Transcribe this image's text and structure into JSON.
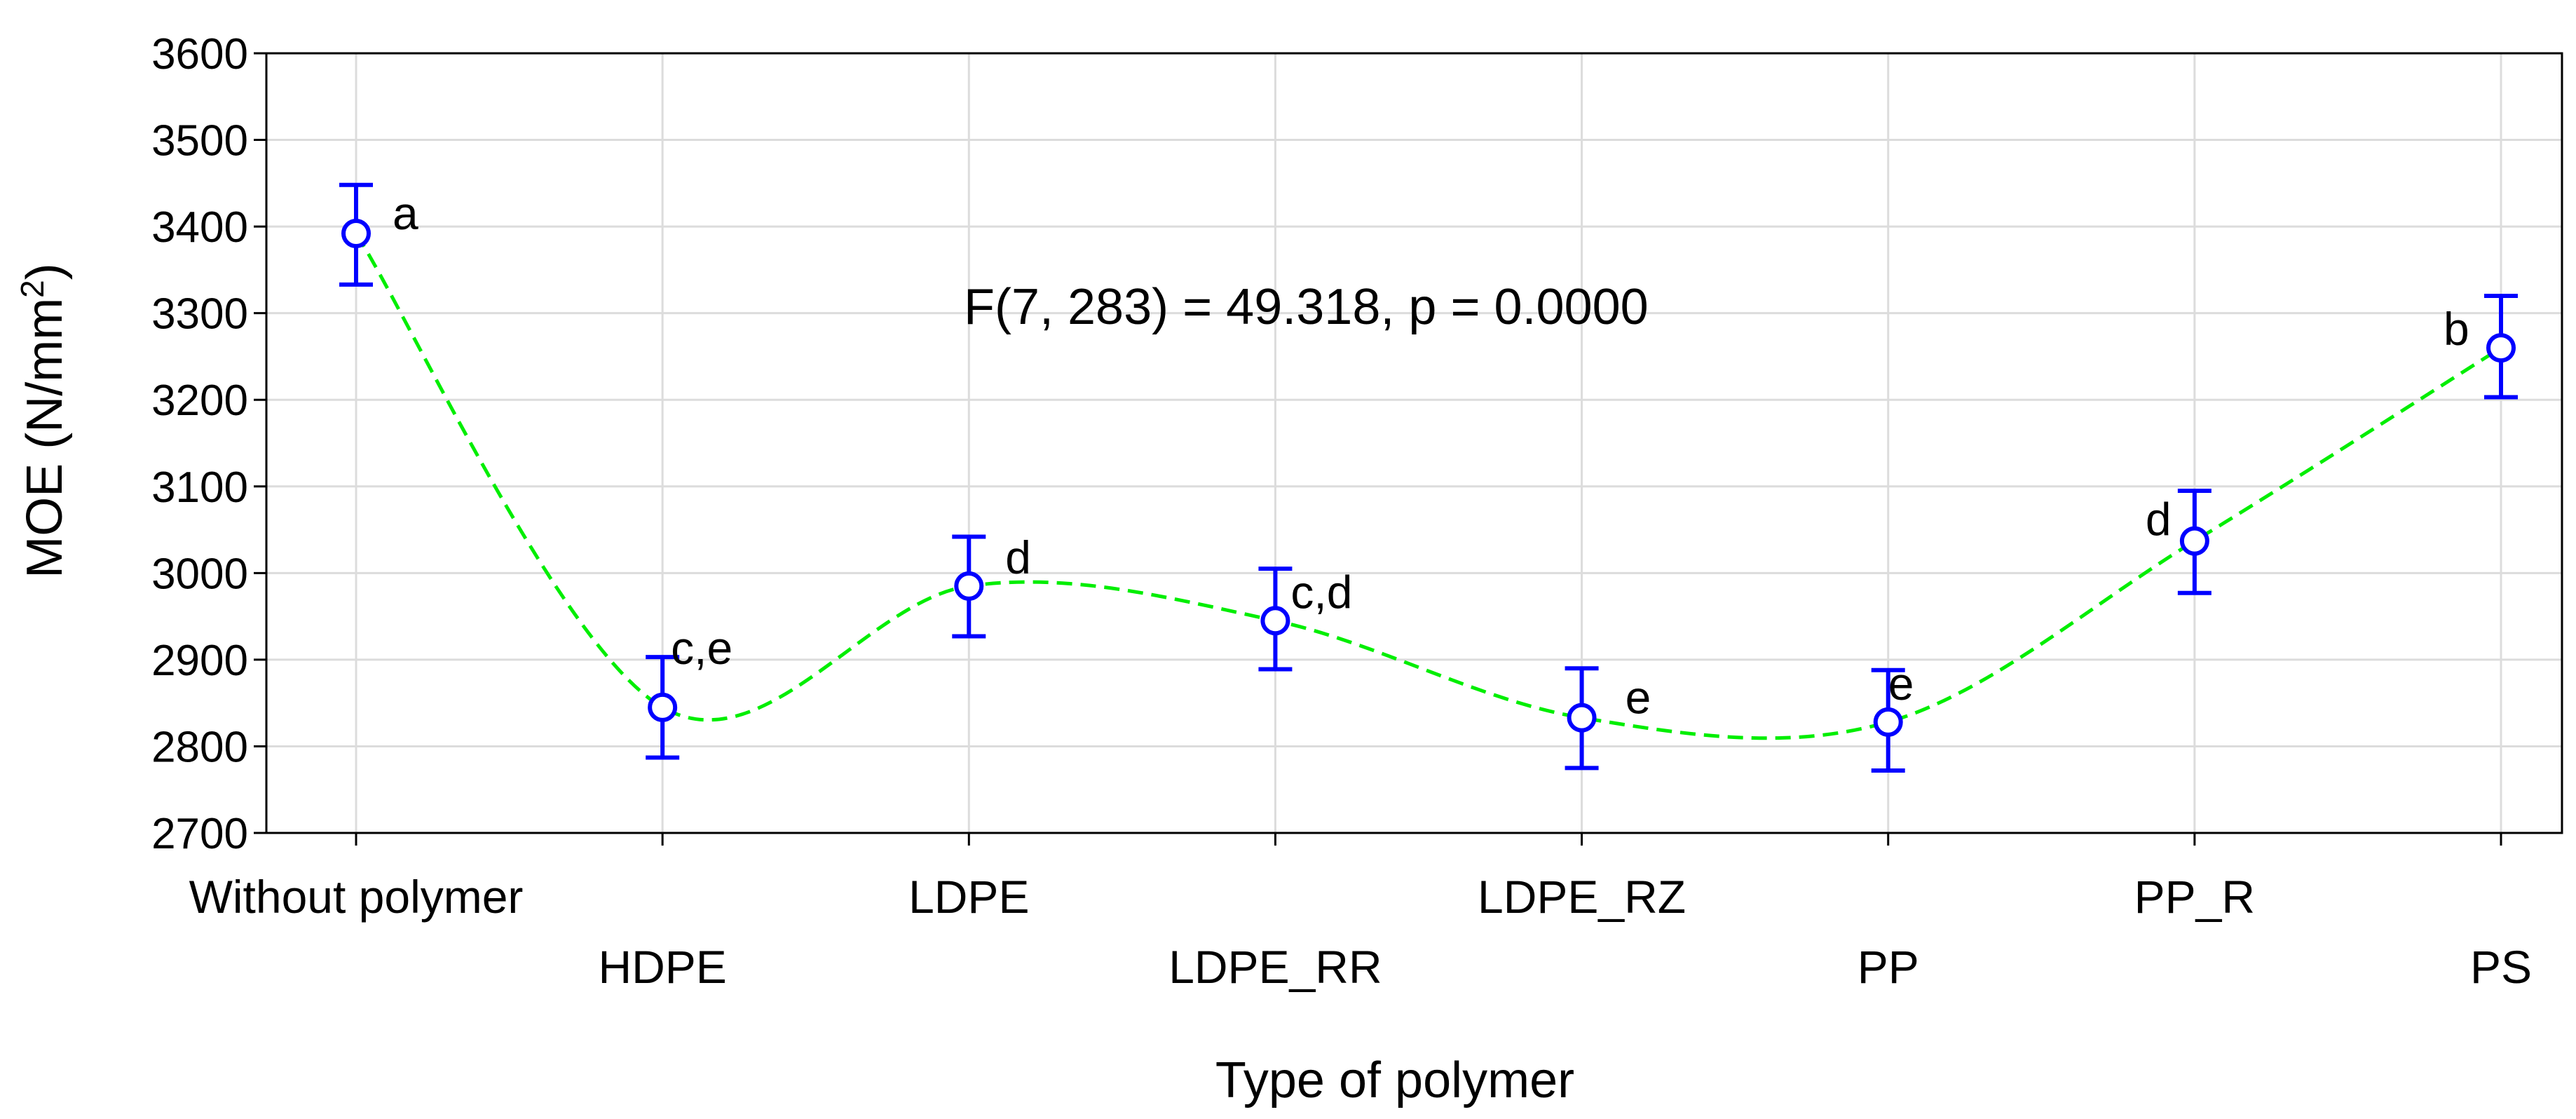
{
  "chart_data": {
    "type": "line",
    "title": "",
    "annotation": "F(7, 283) = 49.318, p = 0.0000",
    "xlabel": "Type of polymer",
    "ylabel": "MOE (N/mm",
    "ylabel_sup": "2",
    "ylabel_close": ")",
    "ylim": [
      2700,
      3600
    ],
    "ytick_step": 100,
    "grid": true,
    "categories": [
      "Without polymer",
      "HDPE",
      "LDPE",
      "LDPE_RR",
      "LDPE_RZ",
      "PP",
      "PP_R",
      "PS"
    ],
    "series": [
      {
        "values": [
          3392,
          2845,
          2985,
          2945,
          2833,
          2828,
          3037,
          3260
        ],
        "err_low": [
          3333,
          2787,
          2927,
          2889,
          2775,
          2772,
          2977,
          3203
        ],
        "err_high": [
          3448,
          2903,
          3042,
          3005,
          2890,
          2888,
          3095,
          3320
        ],
        "group_letters": [
          "a",
          "c,e",
          "d",
          "c,d",
          "e",
          "e",
          "d",
          "b"
        ],
        "marker_color": "#0000ff",
        "line_color": "#00ee00"
      }
    ]
  }
}
